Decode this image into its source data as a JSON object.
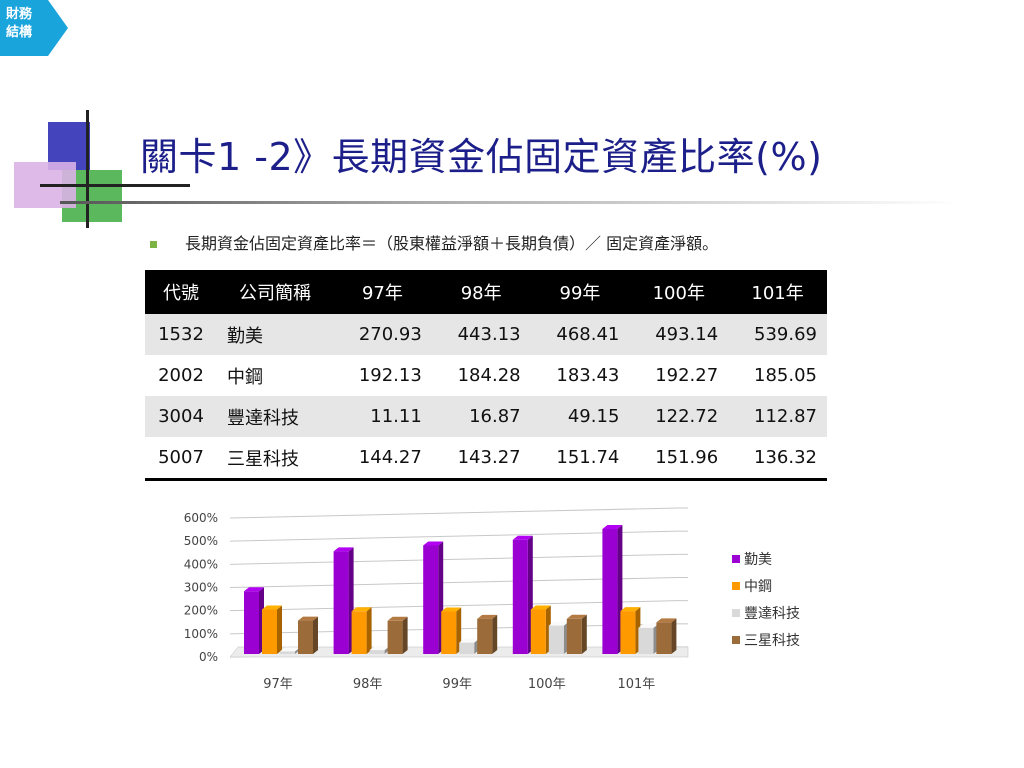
{
  "section_tab": {
    "line1": "財務",
    "line2": "結構",
    "color": "#1aa4dc"
  },
  "title": "關卡1 -2》長期資金佔固定資產比率(%)",
  "formula": "長期資金佔固定資產比率＝（股東權益淨額＋長期負債）／ 固定資產淨額。",
  "table": {
    "headers": [
      "代號",
      "公司簡稱",
      "97年",
      "98年",
      "99年",
      "100年",
      "101年"
    ],
    "rows": [
      [
        "1532",
        "勤美",
        "270.93",
        "443.13",
        "468.41",
        "493.14",
        "539.69"
      ],
      [
        "2002",
        "中鋼",
        "192.13",
        "184.28",
        "183.43",
        "192.27",
        "185.05"
      ],
      [
        "3004",
        "豐達科技",
        "11.11",
        "16.87",
        "49.15",
        "122.72",
        "112.87"
      ],
      [
        "5007",
        "三星科技",
        "144.27",
        "143.27",
        "151.74",
        "151.96",
        "136.32"
      ]
    ]
  },
  "chart_data": {
    "type": "bar",
    "categories": [
      "97年",
      "98年",
      "99年",
      "100年",
      "101年"
    ],
    "series": [
      {
        "name": "勤美",
        "color": "#9b00d3",
        "values": [
          270.93,
          443.13,
          468.41,
          493.14,
          539.69
        ]
      },
      {
        "name": "中鋼",
        "color": "#ff9900",
        "values": [
          192.13,
          184.28,
          183.43,
          192.27,
          185.05
        ]
      },
      {
        "name": "豐達科技",
        "color": "#d9d9d9",
        "values": [
          11.11,
          16.87,
          49.15,
          122.72,
          112.87
        ]
      },
      {
        "name": "三星科技",
        "color": "#9c6b3a",
        "values": [
          144.27,
          143.27,
          151.74,
          151.96,
          136.32
        ]
      }
    ],
    "yticks": [
      "600%",
      "500%",
      "400%",
      "300%",
      "200%",
      "100%",
      "0%"
    ],
    "ylim": [
      0,
      600
    ],
    "grid": true,
    "legend": "right"
  }
}
